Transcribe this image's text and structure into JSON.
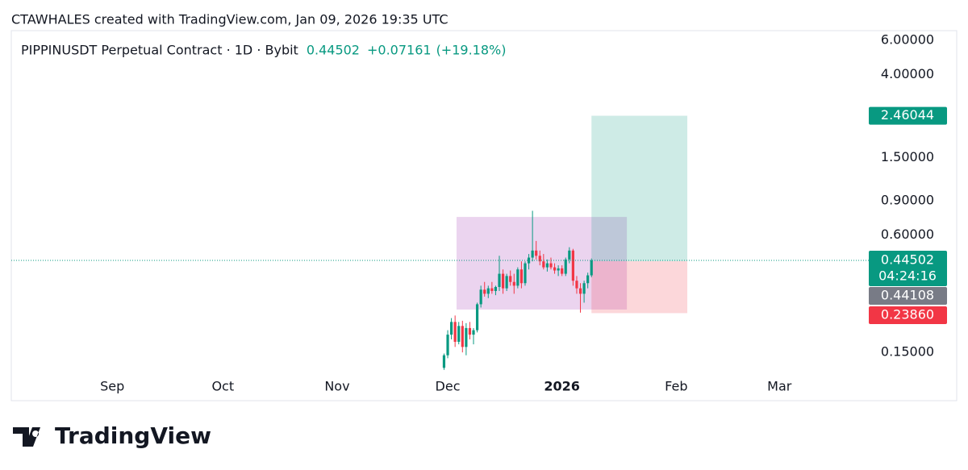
{
  "header": {
    "attribution": "CTAWHALES created with TradingView.com, Jan 09, 2026 19:35 UTC"
  },
  "footer": {
    "logo_text": "TradingView"
  },
  "chart_data": {
    "type": "candlestick",
    "title": "PIPPINUSDT Perpetual Contract · 1D · Bybit",
    "last_price_text": "0.44502",
    "change_text": "+0.07161",
    "change_percent_text": "(+19.18%)",
    "log_scale": true,
    "up_color": "#089981",
    "down_color": "#f23645",
    "xlim": [
      -27.4,
      203.7
    ],
    "xticks": [
      {
        "value": 0,
        "label": "Sep"
      },
      {
        "value": 30,
        "label": "Oct"
      },
      {
        "value": 61,
        "label": "Nov"
      },
      {
        "value": 91,
        "label": "Dec"
      },
      {
        "value": 122,
        "label": "2026"
      },
      {
        "value": 153,
        "label": "Feb"
      },
      {
        "value": 181,
        "label": "Mar"
      }
    ],
    "ylim": [
      0.115,
      6.73
    ],
    "yticks": [
      {
        "value": 0.15,
        "label": "0.15000"
      },
      {
        "value": 0.6,
        "label": "0.60000"
      },
      {
        "value": 0.9,
        "label": "0.90000"
      },
      {
        "value": 1.5,
        "label": "1.50000"
      },
      {
        "value": 4,
        "label": "4.00000"
      },
      {
        "value": 6,
        "label": "6.00000"
      }
    ],
    "x": [
      90,
      91,
      92,
      93,
      94,
      95,
      96,
      97,
      98,
      99,
      100,
      101,
      102,
      103,
      104,
      105,
      106,
      107,
      108,
      109,
      110,
      111,
      112,
      113,
      114,
      115,
      116,
      117,
      118,
      119,
      120,
      121,
      122,
      123,
      124,
      125,
      126,
      127,
      128,
      129,
      130
    ],
    "open": [
      0.125,
      0.145,
      0.185,
      0.215,
      0.17,
      0.205,
      0.16,
      0.2,
      0.185,
      0.195,
      0.265,
      0.315,
      0.3,
      0.32,
      0.31,
      0.325,
      0.38,
      0.32,
      0.37,
      0.345,
      0.33,
      0.4,
      0.34,
      0.43,
      0.46,
      0.5,
      0.47,
      0.44,
      0.41,
      0.43,
      0.41,
      0.395,
      0.405,
      0.38,
      0.45,
      0.5,
      0.35,
      0.32,
      0.3,
      0.34,
      0.373
    ],
    "high": [
      0.148,
      0.195,
      0.225,
      0.232,
      0.215,
      0.218,
      0.212,
      0.215,
      0.2,
      0.27,
      0.33,
      0.345,
      0.33,
      0.345,
      0.33,
      0.47,
      0.4,
      0.38,
      0.395,
      0.38,
      0.41,
      0.44,
      0.44,
      0.48,
      0.8,
      0.56,
      0.5,
      0.48,
      0.45,
      0.46,
      0.43,
      0.42,
      0.42,
      0.46,
      0.52,
      0.51,
      0.37,
      0.34,
      0.35,
      0.385,
      0.455
    ],
    "low": [
      0.122,
      0.14,
      0.175,
      0.16,
      0.165,
      0.15,
      0.145,
      0.175,
      0.165,
      0.19,
      0.255,
      0.29,
      0.285,
      0.3,
      0.295,
      0.31,
      0.3,
      0.31,
      0.33,
      0.3,
      0.32,
      0.32,
      0.33,
      0.4,
      0.44,
      0.45,
      0.42,
      0.4,
      0.39,
      0.4,
      0.38,
      0.37,
      0.37,
      0.37,
      0.43,
      0.33,
      0.3,
      0.24,
      0.27,
      0.32,
      0.365
    ],
    "close": [
      0.145,
      0.185,
      0.215,
      0.17,
      0.205,
      0.16,
      0.2,
      0.185,
      0.195,
      0.265,
      0.315,
      0.3,
      0.32,
      0.31,
      0.325,
      0.38,
      0.32,
      0.37,
      0.345,
      0.33,
      0.4,
      0.34,
      0.43,
      0.46,
      0.5,
      0.47,
      0.44,
      0.41,
      0.43,
      0.41,
      0.395,
      0.405,
      0.38,
      0.45,
      0.5,
      0.35,
      0.32,
      0.3,
      0.34,
      0.373,
      0.445
    ],
    "range_box": {
      "x_start": 93.4,
      "x_end": 139.6,
      "top": 0.744,
      "bottom": 0.249,
      "color": "#ce93d8"
    },
    "position": {
      "x_start": 130,
      "x_end": 156,
      "entry": {
        "value": 0.44108,
        "label": "0.44108"
      },
      "target": 2.46044,
      "stop": {
        "value": 0.2386,
        "label": "0.23860"
      },
      "profit_color": "#089981",
      "loss_color": "#f23645",
      "entry_color": "#787b86"
    },
    "last_price": {
      "value": 0.44502,
      "label": "0.44502",
      "countdown": "04:24:16"
    }
  }
}
